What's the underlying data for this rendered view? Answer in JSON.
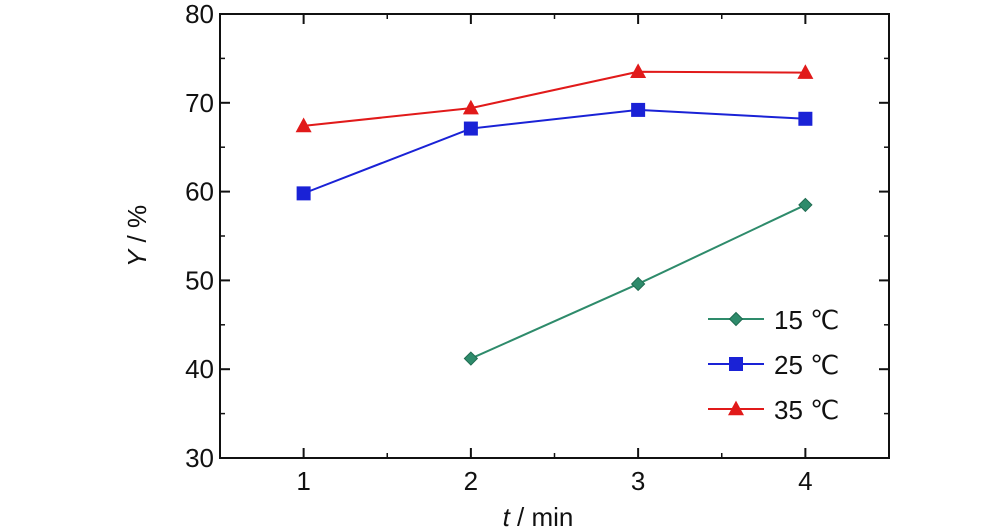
{
  "chart_data": {
    "type": "line",
    "x": [
      1,
      2,
      3,
      4
    ],
    "xlim": [
      0.5,
      4.5
    ],
    "ylim": [
      30,
      80
    ],
    "xticks": [
      "1",
      "2",
      "3",
      "4"
    ],
    "yticks": [
      "30",
      "40",
      "50",
      "60",
      "70",
      "80"
    ],
    "xlabel_var": "t",
    "xlabel_unit": " / min",
    "ylabel_var": "Y",
    "ylabel_unit": " / %",
    "grid": false,
    "legend_position": "bottom-right",
    "series": [
      {
        "name": "15 ℃",
        "color": "#2e8b6b",
        "marker": "diamond",
        "x": [
          2,
          3,
          4
        ],
        "values": [
          41.2,
          49.6,
          58.5
        ]
      },
      {
        "name": "25 ℃",
        "color": "#1a22d6",
        "marker": "square",
        "x": [
          1,
          2,
          3,
          4
        ],
        "values": [
          59.8,
          67.1,
          69.2,
          68.2
        ]
      },
      {
        "name": "35 ℃",
        "color": "#e11a1a",
        "marker": "triangle",
        "x": [
          1,
          2,
          3,
          4
        ],
        "values": [
          67.4,
          69.4,
          73.5,
          73.4
        ]
      }
    ]
  }
}
